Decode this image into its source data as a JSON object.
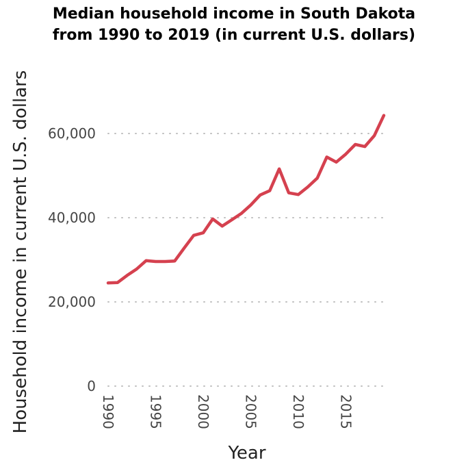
{
  "chart_data": {
    "type": "line",
    "title_lines": [
      "Median household income in South Dakota",
      "from 1990 to 2019 (in current U.S. dollars)"
    ],
    "xlabel": "Year",
    "ylabel": "Household income in current U.S. dollars",
    "xlim": [
      1990,
      2019
    ],
    "ylim": [
      0,
      60000
    ],
    "x_ticks": [
      "1990",
      "1995",
      "2000",
      "2005",
      "2010",
      "2015"
    ],
    "x_tick_values": [
      1990,
      1995,
      2000,
      2005,
      2010,
      2015
    ],
    "y_ticks": [
      "0",
      "20,000",
      "40,000",
      "60,000"
    ],
    "y_tick_values": [
      0,
      20000,
      40000,
      60000
    ],
    "grid": "horizontal dotted",
    "line_color": "#d5414f",
    "x": [
      1990,
      1991,
      1992,
      1993,
      1994,
      1995,
      1996,
      1997,
      1998,
      1999,
      2000,
      2001,
      2002,
      2003,
      2004,
      2005,
      2006,
      2007,
      2008,
      2009,
      2010,
      2011,
      2012,
      2013,
      2014,
      2015,
      2016,
      2017,
      2018,
      2019
    ],
    "values": [
      24500,
      24600,
      26300,
      27800,
      29800,
      29600,
      29600,
      29700,
      32800,
      35800,
      36400,
      39700,
      38000,
      39500,
      41000,
      43000,
      45400,
      46400,
      51600,
      45900,
      45500,
      47300,
      49400,
      54400,
      53200,
      55100,
      57400,
      56900,
      59500,
      64300
    ]
  }
}
